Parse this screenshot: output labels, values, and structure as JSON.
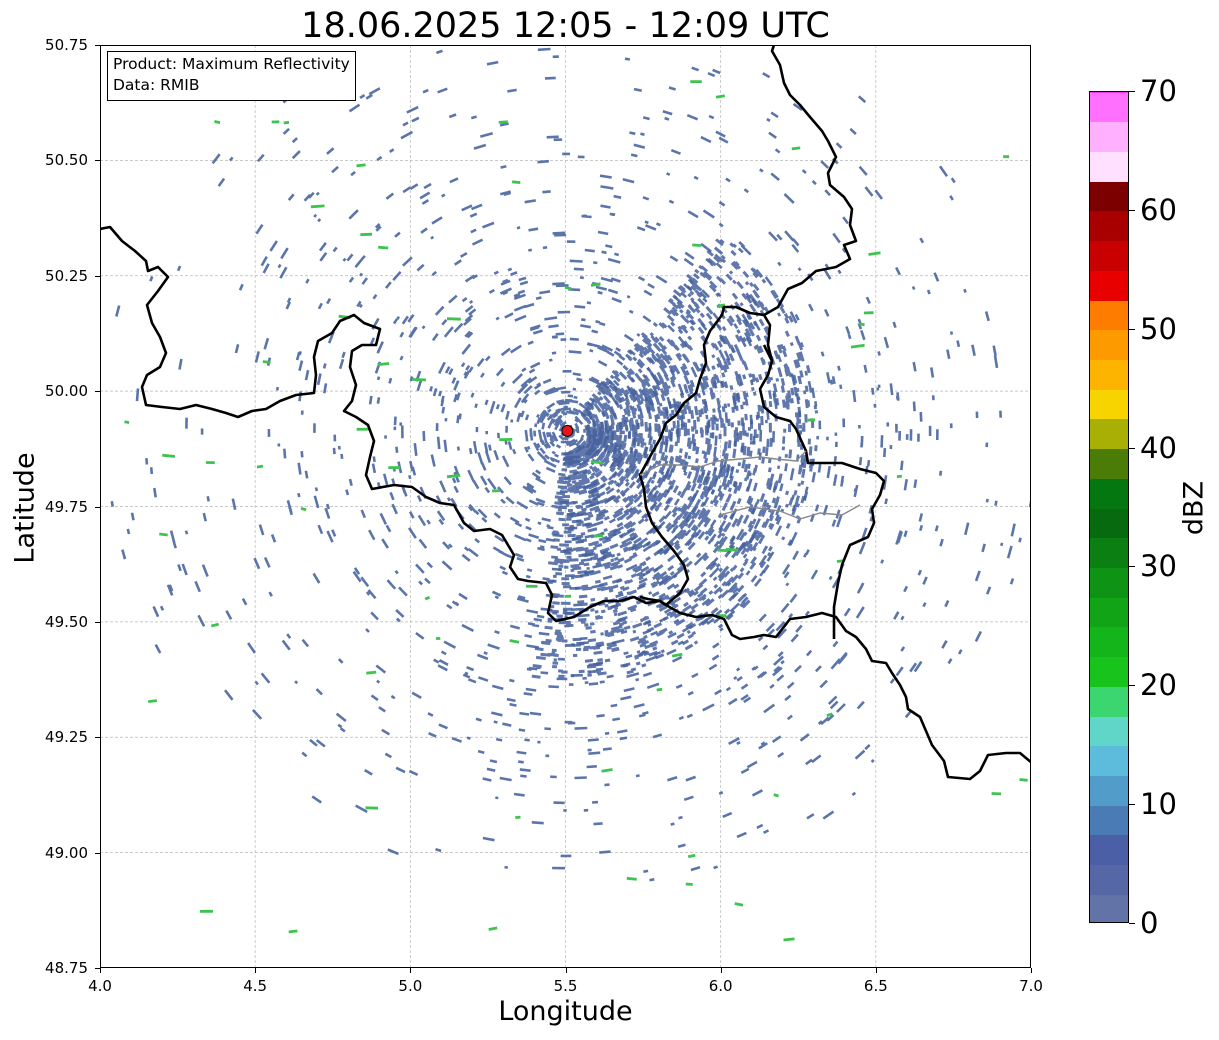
{
  "title": "18.06.2025 12:05 - 12:09 UTC",
  "axes": {
    "xlabel": "Longitude",
    "ylabel": "Latitude",
    "xlim": [
      4.0,
      7.0
    ],
    "ylim": [
      48.75,
      50.75
    ],
    "xticks": [
      "4.0",
      "4.5",
      "5.0",
      "5.5",
      "6.0",
      "6.5",
      "7.0"
    ],
    "yticks": [
      "50.75",
      "50.50",
      "50.25",
      "50.00",
      "49.75",
      "49.50",
      "49.25",
      "49.00",
      "48.75"
    ],
    "grid": true
  },
  "info_box": {
    "product": "Product: Maximum Reflectivity",
    "data": "Data: RMIB"
  },
  "radar_site": {
    "lon": 5.506,
    "lat": 49.914,
    "color": "#e8141c"
  },
  "colorbar": {
    "label": "dBZ",
    "ticks": [
      "0",
      "10",
      "20",
      "30",
      "40",
      "50",
      "60",
      "70"
    ],
    "range": [
      0,
      70
    ],
    "step": 2.5,
    "colors": [
      "#6273a8",
      "#5567a4",
      "#4a5fa5",
      "#4a7bb5",
      "#519cc8",
      "#5dbcdc",
      "#5fd6c8",
      "#3bd670",
      "#18c31c",
      "#14b41b",
      "#10a416",
      "#0e9314",
      "#0b7f12",
      "#086a0e",
      "#047710",
      "#4a7c07",
      "#a8b005",
      "#f7d300",
      "#fcb400",
      "#fd9a00",
      "#fe7d00",
      "#e80000",
      "#c80000",
      "#a80000",
      "#7c0000",
      "#ffe0ff",
      "#ffb0ff",
      "#ff70ff",
      "#ef38ef"
    ]
  },
  "map_legend_colors": {
    "dominant_echo": "#4e6aa3",
    "minor_echo": "#3fc34f",
    "border": "#000000",
    "inner_border": "#888888"
  }
}
